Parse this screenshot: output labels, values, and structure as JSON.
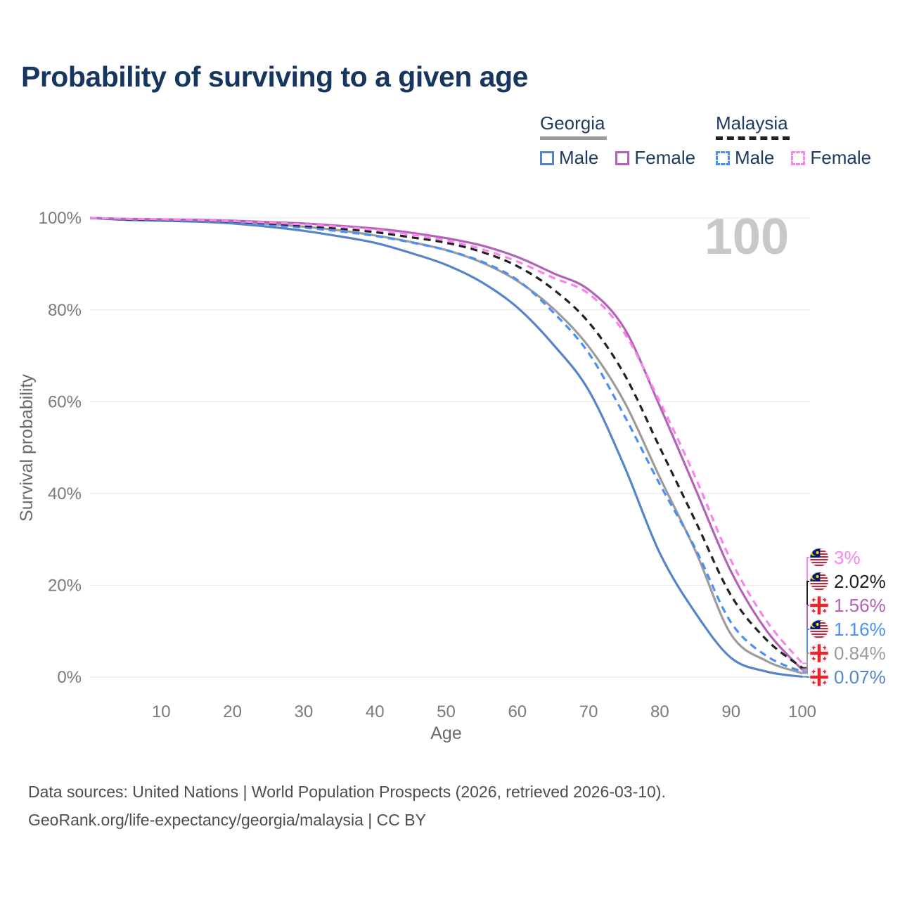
{
  "title": "Probability of surviving to a given age",
  "watermark_age": "100",
  "legend": {
    "groups": [
      {
        "country": "Georgia",
        "line_style": "solid",
        "line_color": "#9c9c9c",
        "items": [
          {
            "label": "Male",
            "color": "#5585c8",
            "style": "solid"
          },
          {
            "label": "Female",
            "color": "#b263b8",
            "style": "solid"
          }
        ]
      },
      {
        "country": "Malaysia",
        "line_style": "dashed",
        "line_color": "#212121",
        "items": [
          {
            "label": "Male",
            "color": "#4a90f4",
            "style": "dashed"
          },
          {
            "label": "Female",
            "color": "#f884ec",
            "style": "dashed"
          }
        ]
      }
    ]
  },
  "chart_data": {
    "type": "line",
    "title": "Probability of surviving to a given age",
    "xlabel": "Age",
    "ylabel": "Survival probability",
    "xlim": [
      0,
      100
    ],
    "ylim": [
      0,
      100
    ],
    "x_ticks": [
      10,
      20,
      30,
      40,
      50,
      60,
      70,
      80,
      90,
      100
    ],
    "y_ticks": [
      0,
      20,
      40,
      60,
      80,
      100
    ],
    "y_tick_suffix": "%",
    "grid": true,
    "legend_position": "top-right",
    "x": [
      0,
      5,
      10,
      15,
      20,
      25,
      30,
      35,
      40,
      45,
      50,
      55,
      60,
      65,
      70,
      75,
      80,
      85,
      90,
      95,
      100
    ],
    "series": [
      {
        "key": "georgia_both",
        "country": "Georgia",
        "sex": "both",
        "style": "solid",
        "color": "#9c9c9c",
        "end_label": "0.84%",
        "values": [
          100,
          99.7,
          99.5,
          99.4,
          99.1,
          98.7,
          98.1,
          97.3,
          96.2,
          94.8,
          93.0,
          90.3,
          86.3,
          80.3,
          72.0,
          60.0,
          43.5,
          27.5,
          9.3,
          3.5,
          0.84
        ]
      },
      {
        "key": "georgia_male",
        "country": "Georgia",
        "sex": "male",
        "style": "solid",
        "color": "#5585c8",
        "end_label": "0.07%",
        "values": [
          100,
          99.6,
          99.4,
          99.2,
          98.8,
          98.1,
          97.2,
          96.0,
          94.6,
          92.4,
          89.8,
          86.0,
          80.5,
          72.5,
          62.5,
          46.0,
          27.0,
          14.0,
          4.2,
          1.2,
          0.07
        ]
      },
      {
        "key": "georgia_female",
        "country": "Georgia",
        "sex": "female",
        "style": "solid",
        "color": "#b263b8",
        "end_label": "1.56%",
        "values": [
          100,
          99.8,
          99.7,
          99.6,
          99.4,
          99.1,
          98.8,
          98.3,
          97.7,
          96.8,
          95.6,
          94.0,
          91.5,
          88.0,
          84.4,
          76.0,
          59.0,
          41.0,
          23.0,
          10.1,
          1.56
        ]
      },
      {
        "key": "malaysia_male",
        "country": "Malaysia",
        "sex": "male",
        "style": "dashed",
        "color": "#4a90f4",
        "end_label": "1.16%",
        "values": [
          100,
          99.6,
          99.5,
          99.3,
          99.0,
          98.5,
          97.9,
          97.1,
          96.1,
          94.7,
          93.0,
          90.5,
          86.5,
          79.5,
          70.6,
          57.0,
          42.0,
          28.0,
          11.9,
          4.6,
          1.16
        ]
      },
      {
        "key": "malaysia_both",
        "country": "Malaysia",
        "sex": "both",
        "style": "dashed",
        "color": "#212121",
        "end_label": "2.02%",
        "values": [
          100,
          99.7,
          99.6,
          99.4,
          99.2,
          98.8,
          98.3,
          97.7,
          96.9,
          95.8,
          94.6,
          92.6,
          89.5,
          84.5,
          77.3,
          66.0,
          50.0,
          34.0,
          17.8,
          8.1,
          2.02
        ]
      },
      {
        "key": "malaysia_female",
        "country": "Malaysia",
        "sex": "female",
        "style": "dashed",
        "color": "#f884ec",
        "end_label": "3%",
        "values": [
          100,
          99.8,
          99.7,
          99.5,
          99.3,
          99.0,
          98.6,
          98.1,
          97.4,
          96.4,
          95.1,
          93.2,
          90.5,
          87.0,
          83.5,
          75.0,
          60.0,
          43.5,
          25.4,
          12.2,
          3.0
        ]
      }
    ]
  },
  "end_labels": [
    {
      "series": "malaysia_female",
      "flag": "malaysia",
      "text": "3%"
    },
    {
      "series": "malaysia_both",
      "flag": "malaysia",
      "text": "2.02%"
    },
    {
      "series": "georgia_female",
      "flag": "georgia",
      "text": "1.56%"
    },
    {
      "series": "malaysia_male",
      "flag": "malaysia",
      "text": "1.16%"
    },
    {
      "series": "georgia_both",
      "flag": "georgia",
      "text": "0.84%"
    },
    {
      "series": "georgia_male",
      "flag": "georgia",
      "text": "0.07%"
    }
  ],
  "footer": {
    "line1": "Data sources: United Nations | World Population Prospects (2026, retrieved 2026-03-10).",
    "line2": "GeoRank.org/life-expectancy/georgia/malaysia | CC BY"
  }
}
